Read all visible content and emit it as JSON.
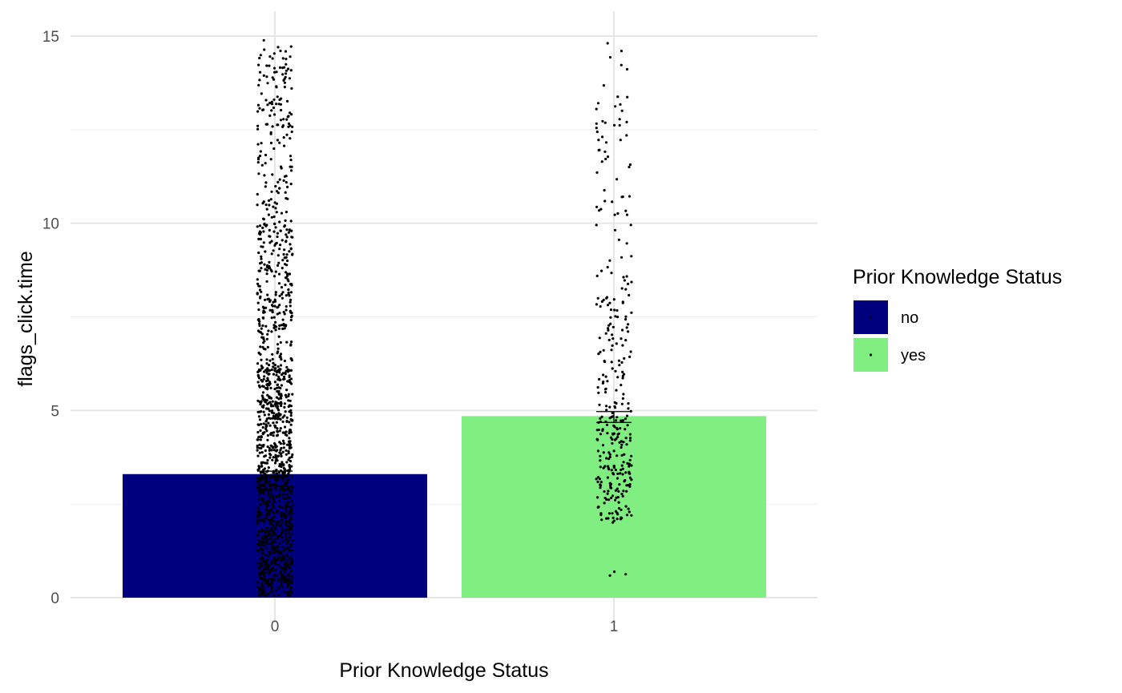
{
  "chart_data": {
    "type": "bar",
    "categories": [
      "0",
      "1"
    ],
    "values": [
      3.3,
      4.85
    ],
    "error_bar_range": [
      [
        3.22,
        3.38
      ],
      [
        4.68,
        4.97
      ]
    ],
    "xlabel": "Prior Knowledge Status",
    "ylabel": "flags_click.time",
    "ylim": [
      0,
      15.6
    ],
    "y_ticks": [
      0,
      5,
      10,
      15
    ],
    "grid": true,
    "legend": {
      "title": "Prior Knowledge Status",
      "placement": "right",
      "items": [
        {
          "label": "no",
          "color": "#00007f"
        },
        {
          "label": "yes",
          "color": "#80ee80"
        }
      ]
    },
    "jitter_points": {
      "description": "individual observations overlaid as jittered black points",
      "groups": [
        {
          "category": "0",
          "count": 1400,
          "y_min": 0.05,
          "y_max": 14.9
        },
        {
          "category": "1",
          "count": 330,
          "y_min": 0.55,
          "y_max": 14.9
        }
      ]
    },
    "point_color": "#000000"
  }
}
